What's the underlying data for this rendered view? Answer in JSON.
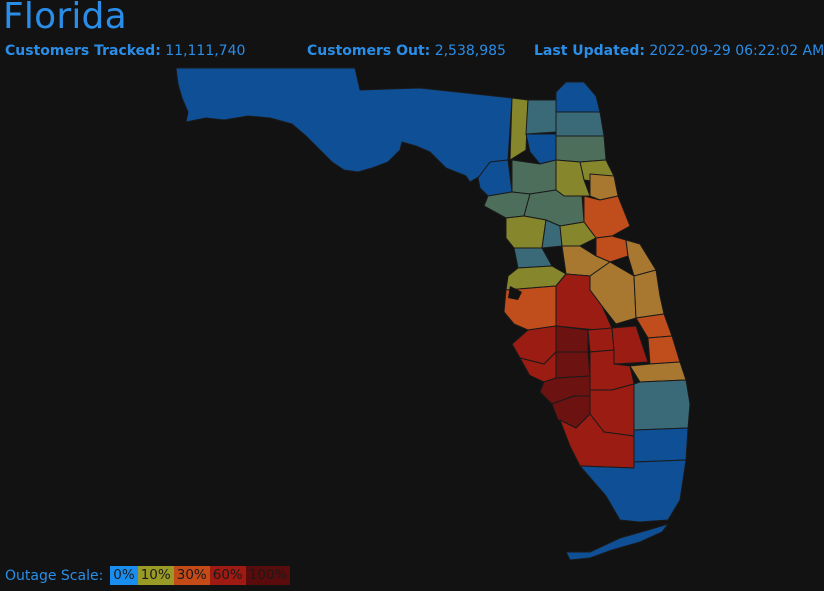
{
  "header": {
    "title": "Florida"
  },
  "stats": {
    "tracked_label": "Customers Tracked:",
    "tracked_value": "11,111,740",
    "out_label": "Customers Out:",
    "out_value": "2,538,985",
    "updated_label": "Last Updated:",
    "updated_value": "2022-09-29 06:22:02 AM"
  },
  "legend": {
    "label": "Outage Scale:",
    "items": [
      {
        "text": "0%",
        "color": "#1a8ef0"
      },
      {
        "text": "10%",
        "color": "#9a9a26"
      },
      {
        "text": "30%",
        "color": "#c44a18"
      },
      {
        "text": "60%",
        "color": "#9e1a12"
      },
      {
        "text": "100%",
        "color": "#5a0c0c"
      }
    ]
  },
  "colors": {
    "accent": "#2a8ee8",
    "background": "#121212",
    "county_blue": "#0f4f96",
    "county_teal": "#3a6a78",
    "county_green": "#4e6e5c",
    "county_olive": "#86862c",
    "county_orange_brown": "#a87830",
    "county_orange": "#c04e1c",
    "county_red": "#9a1c12",
    "county_dark_red": "#6c1210",
    "county_border": "#1a1a1a"
  }
}
